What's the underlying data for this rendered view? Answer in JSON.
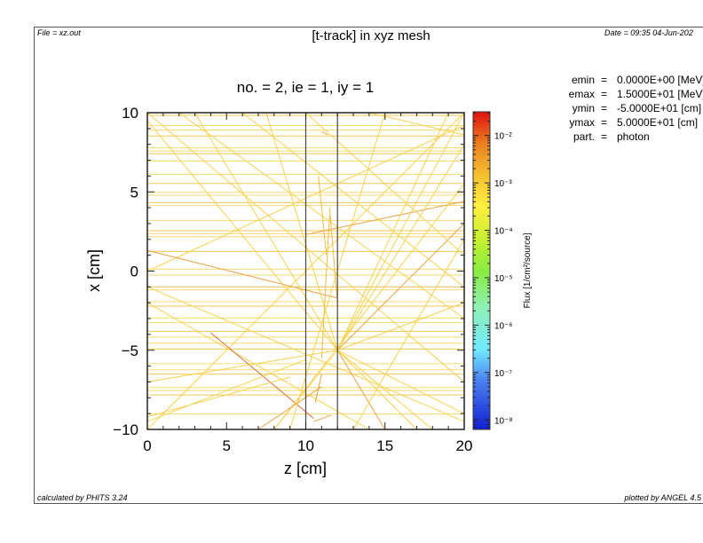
{
  "header": {
    "file": "File = xz.out",
    "title": "[t-track] in xyz mesh",
    "date": "Date = 09:35 04-Jun-202"
  },
  "footer": {
    "calculated_by": "calculated by PHITS 3.24",
    "plotted_by": "plotted by ANGEL 4.5"
  },
  "info": [
    {
      "label": "emin",
      "eq": "=",
      "value": "0.0000E+00 [MeV]"
    },
    {
      "label": "emax",
      "eq": "=",
      "value": "1.5000E+01 [MeV]"
    },
    {
      "label": "ymin",
      "eq": "=",
      "value": "-5.0000E+01 [cm]"
    },
    {
      "label": "ymax",
      "eq": "=",
      "value": "5.0000E+01 [cm]"
    },
    {
      "label": "part.",
      "eq": "=",
      "value": "photon"
    }
  ],
  "chart_data": {
    "type": "line",
    "title": "no. =  2,  ie =  1,  iy =  1",
    "xlabel": "z [cm]",
    "ylabel": "x [cm]",
    "xlim": [
      0,
      20
    ],
    "ylim": [
      -10,
      10
    ],
    "xticks": [
      0,
      5,
      10,
      15,
      20
    ],
    "xtick_labels": [
      "0",
      "5",
      "10",
      "15",
      "20"
    ],
    "yticks": [
      10,
      5,
      0,
      -5,
      -10
    ],
    "ytick_labels": [
      "10",
      "5",
      "0",
      "−5",
      "−10"
    ],
    "grid": false,
    "region_boundaries_z": [
      10,
      12
    ],
    "colorbar": {
      "label": "Flux [1/cm²/source]",
      "scale": "log",
      "range_log10": [
        -8.2,
        -1.5
      ],
      "ticks_log10": [
        -2,
        -3,
        -4,
        -5,
        -6,
        -7,
        -8
      ],
      "tick_labels": [
        "10⁻²",
        "10⁻³",
        "10⁻⁴",
        "10⁻⁵",
        "10⁻⁶",
        "10⁻⁷",
        "10⁻⁸"
      ]
    },
    "horizontal_tracks_x": [
      9.83,
      9.18,
      8.9,
      8.53,
      7.78,
      7.59,
      7.41,
      6.94,
      6.1,
      5.53,
      4.97,
      4.79,
      4.32,
      4.14,
      3.2,
      2.55,
      2.36,
      2.17,
      1.24,
      0.12,
      -0.25,
      -1.0,
      -1.19,
      -1.93,
      -2.21,
      -2.96,
      -3.24,
      -3.8,
      -4.17,
      -4.55,
      -4.92,
      -5.85,
      -6.23,
      -6.51,
      -7.35,
      -7.54,
      -7.82,
      -9.03
    ],
    "tracks": [
      {
        "z1": 0,
        "x1": -10,
        "z2": 20,
        "x2": 10,
        "flux_log10": -3.3
      },
      {
        "z1": 0,
        "x1": 10,
        "z2": 20,
        "x2": -7,
        "flux_log10": -3.3
      },
      {
        "z1": 0,
        "x1": 9.5,
        "z2": 12,
        "x2": -5,
        "flux_log10": -3.3
      },
      {
        "z1": 0,
        "x1": 0,
        "z2": 20,
        "x2": 9.2,
        "flux_log10": -3.3
      },
      {
        "z1": 0,
        "x1": -1,
        "z2": 20,
        "x2": -9.5,
        "flux_log10": -3.3
      },
      {
        "z1": 0,
        "x1": -2,
        "z2": 14,
        "x2": -10,
        "flux_log10": -3.3
      },
      {
        "z1": 0,
        "x1": 1.3,
        "z2": 12,
        "x2": -1.7,
        "flux_log10": -2.6
      },
      {
        "z1": 4,
        "x1": -3.9,
        "z2": 10.5,
        "x2": -9.3,
        "flux_log10": -2.2
      },
      {
        "z1": 10,
        "x1": 2.3,
        "z2": 20,
        "x2": 4.4,
        "flux_log10": -2.6
      },
      {
        "z1": 0,
        "x1": -9.5,
        "z2": 10,
        "x2": -5.6,
        "flux_log10": -3.3
      },
      {
        "z1": 0,
        "x1": -7,
        "z2": 12,
        "x2": -5,
        "flux_log10": -3.3
      },
      {
        "z1": 12,
        "x1": -5,
        "z2": 20,
        "x2": 10,
        "flux_log10": -3.3
      },
      {
        "z1": 12,
        "x1": -5,
        "z2": 20,
        "x2": 8,
        "flux_log10": -3.3
      },
      {
        "z1": 12,
        "x1": -5,
        "z2": 20,
        "x2": 3,
        "flux_log10": -2.7
      },
      {
        "z1": 12,
        "x1": -5,
        "z2": 20,
        "x2": -2,
        "flux_log10": -3.3
      },
      {
        "z1": 12,
        "x1": -5,
        "z2": 20,
        "x2": -9,
        "flux_log10": -3.3
      },
      {
        "z1": 12,
        "x1": -5,
        "z2": 15,
        "x2": -10,
        "flux_log10": -2.7
      },
      {
        "z1": 12,
        "x1": -5,
        "z2": 8,
        "x2": -10,
        "flux_log10": -3.3
      },
      {
        "z1": 12,
        "x1": -5,
        "z2": 3,
        "x2": 10,
        "flux_log10": -3.3
      },
      {
        "z1": 12,
        "x1": -5,
        "z2": 7.5,
        "x2": 10,
        "flux_log10": -3.3
      },
      {
        "z1": 12,
        "x1": -5,
        "z2": 18,
        "x2": -10,
        "flux_log10": -3.3
      },
      {
        "z1": 12,
        "x1": -5,
        "z2": 19,
        "x2": 10,
        "flux_log10": -3.3
      },
      {
        "z1": 12,
        "x1": -5,
        "z2": 17,
        "x2": -10,
        "flux_log10": -3.3
      },
      {
        "z1": 2,
        "x1": 10,
        "z2": 20,
        "x2": -3,
        "flux_log10": -3.3
      },
      {
        "z1": 6,
        "x1": 10,
        "z2": 20,
        "x2": -1,
        "flux_log10": -3.3
      },
      {
        "z1": 14,
        "x1": 10,
        "z2": 20,
        "x2": 8.6,
        "flux_log10": -3.3
      },
      {
        "z1": 0,
        "x1": -9.2,
        "z2": 9,
        "x2": -6.7,
        "flux_log10": -3.3
      },
      {
        "z1": 8,
        "x1": -10,
        "z2": 20,
        "x2": 5.5,
        "flux_log10": -3.3
      },
      {
        "z1": 13,
        "x1": -10,
        "z2": 20,
        "x2": 2,
        "flux_log10": -3.3
      },
      {
        "z1": 15,
        "x1": 10,
        "z2": 9,
        "x2": -10,
        "flux_log10": -3.3
      },
      {
        "z1": 10,
        "x1": 10,
        "z2": 20,
        "x2": 1,
        "flux_log10": -3.3
      },
      {
        "z1": 11,
        "x1": -5.5,
        "z2": 11.5,
        "x2": 3.5,
        "flux_log10": -2.9
      },
      {
        "z1": 10.8,
        "x1": 6,
        "z2": 11.3,
        "x2": 1,
        "flux_log10": -2.9
      },
      {
        "z1": 11.5,
        "x1": 4,
        "z2": 12,
        "x2": -2,
        "flux_log10": -2.9
      },
      {
        "z1": 11,
        "x1": 8.8,
        "z2": 11.4,
        "x2": 8.6,
        "flux_log10": -2.6
      },
      {
        "z1": 10.6,
        "x1": -8.3,
        "z2": 11,
        "x2": -6.5,
        "flux_log10": -2.4
      },
      {
        "z1": 10.5,
        "x1": -9.5,
        "z2": 11.6,
        "x2": -9.1,
        "flux_log10": -2.6
      },
      {
        "z1": 7,
        "x1": -10,
        "z2": 11,
        "x2": -7.3,
        "flux_log10": -2.6
      }
    ]
  }
}
